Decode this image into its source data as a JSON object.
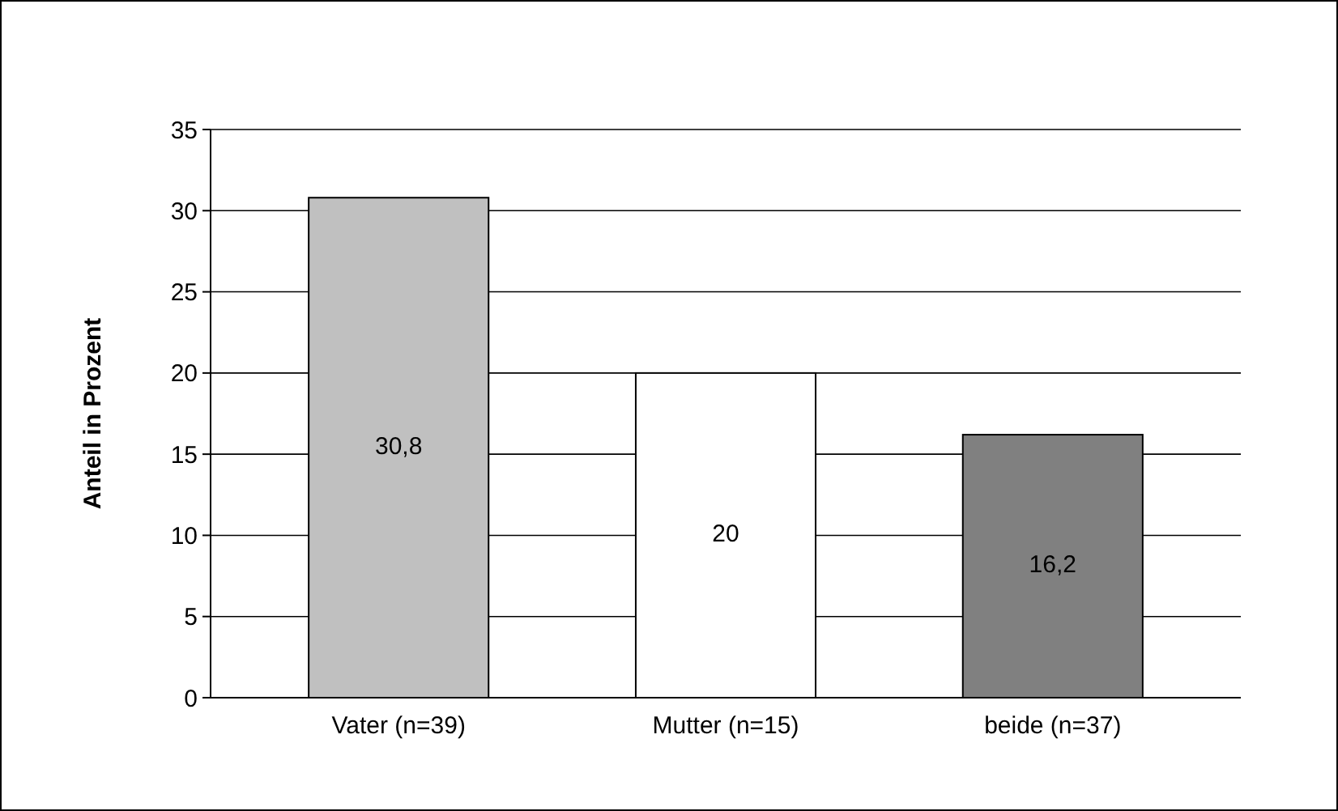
{
  "chart_data": {
    "type": "bar",
    "ylabel": "Anteil in Prozent",
    "categories": [
      "Vater (n=39)",
      "Mutter (n=15)",
      "beide (n=37)"
    ],
    "values": [
      30.8,
      20,
      16.2
    ],
    "value_labels": [
      "30,8",
      "20",
      "16,2"
    ],
    "colors": [
      "#c0c0c0",
      "#ffffff",
      "#808080"
    ],
    "ylim": [
      0,
      35
    ],
    "yticks": [
      0,
      5,
      10,
      15,
      20,
      25,
      30,
      35
    ],
    "grid": "y"
  }
}
